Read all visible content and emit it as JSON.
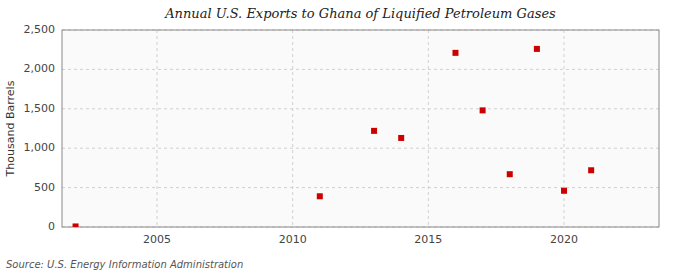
{
  "chart_data": {
    "type": "scatter",
    "title": "Annual U.S. Exports to Ghana of Liquified Petroleum Gases",
    "ylabel": "Thousand Barrels",
    "source": "Source: U.S. Energy Information Administration",
    "x": [
      2002,
      2011,
      2013,
      2014,
      2016,
      2017,
      2018,
      2019,
      2020,
      2021
    ],
    "values": [
      7,
      390,
      1220,
      1130,
      2210,
      1480,
      670,
      2260,
      460,
      720
    ],
    "color": "#cc0000",
    "marker": "square",
    "xlim": [
      2001.5,
      2023.5
    ],
    "xticks": [
      2005,
      2010,
      2015,
      2020
    ],
    "ylim": [
      0,
      2500
    ],
    "yticks": [
      0,
      500,
      {
        "value": 1000,
        "label": "1,000"
      },
      {
        "value": 1500,
        "label": "1,500"
      },
      {
        "value": 2000,
        "label": "2,000"
      },
      {
        "value": 2500,
        "label": "2,500"
      }
    ],
    "grid": true
  }
}
